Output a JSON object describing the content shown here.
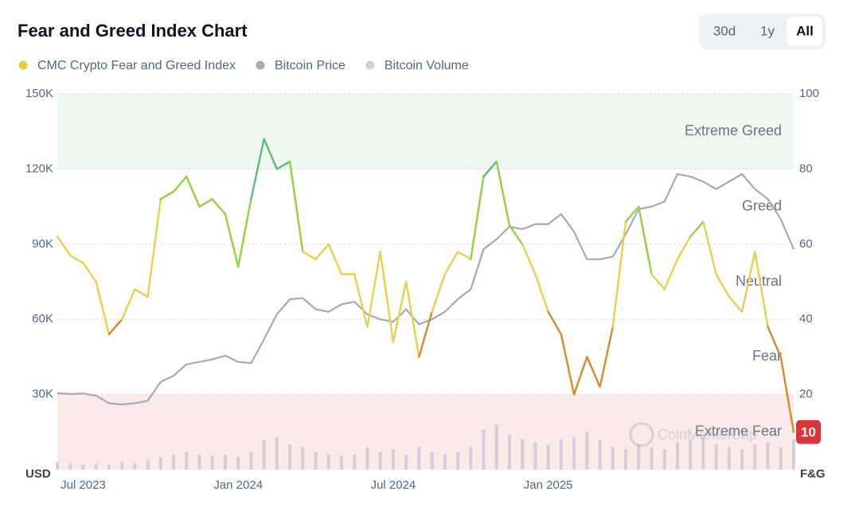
{
  "chart_data": {
    "type": "line",
    "title": "Fear and Greed Index Chart",
    "range_buttons": [
      "30d",
      "1y",
      "All"
    ],
    "categories": [
      null,
      null,
      "Jul 2023",
      null,
      null,
      null,
      null,
      null,
      null,
      null,
      null,
      null,
      null,
      null,
      "Jan 2024",
      null,
      null,
      null,
      null,
      null,
      null,
      null,
      null,
      null,
      null,
      null,
      "Jul 2024",
      null,
      null,
      null,
      null,
      null,
      null,
      null,
      null,
      null,
      null,
      null,
      "Jan 2025",
      null,
      null,
      null,
      null,
      null,
      null,
      null,
      null,
      null,
      null,
      null,
      null,
      null,
      null,
      null,
      null,
      null,
      null,
      null
    ],
    "series": [
      {
        "name": "CMC Crypto Fear and Greed Index",
        "color": "#e2cf3a",
        "axis": "y2",
        "values": [
          62,
          57,
          55,
          50,
          36,
          40,
          48,
          46,
          72,
          74,
          78,
          70,
          72,
          68,
          54,
          72,
          88,
          80,
          82,
          58,
          56,
          60,
          52,
          52,
          38,
          58,
          34,
          50,
          30,
          42,
          52,
          58,
          56,
          78,
          82,
          65,
          60,
          52,
          42,
          36,
          20,
          30,
          22,
          38,
          66,
          70,
          52,
          48,
          56,
          62,
          66,
          52,
          46,
          42,
          58,
          38,
          30,
          10
        ]
      },
      {
        "name": "Bitcoin Price",
        "color": "#a5a9b8",
        "values": [
          30500,
          30200,
          30400,
          29500,
          26500,
          26000,
          26500,
          27500,
          35000,
          37500,
          42000,
          43000,
          44000,
          45500,
          43000,
          42500,
          52000,
          62000,
          68000,
          68500,
          64000,
          63000,
          66000,
          67000,
          62000,
          60000,
          59000,
          64000,
          58000,
          60000,
          63000,
          68000,
          72000,
          88000,
          92000,
          97000,
          96000,
          98000,
          98000,
          102000,
          95000,
          84000,
          84000,
          85000,
          94000,
          104000,
          105000,
          107000,
          118000,
          117000,
          115000,
          112000,
          115000,
          118000,
          112000,
          108000,
          100000,
          88000
        ]
      },
      {
        "name": "Bitcoin Volume",
        "color": "#d6cdd9",
        "values": [
          3000,
          2500,
          2000,
          2500,
          2000,
          3000,
          2500,
          4000,
          5000,
          6000,
          7000,
          6000,
          5500,
          6000,
          5000,
          7000,
          12000,
          13000,
          10000,
          9000,
          7000,
          6000,
          5500,
          6000,
          9000,
          7000,
          8000,
          6000,
          9000,
          7000,
          6000,
          7000,
          9000,
          16000,
          18000,
          14000,
          12000,
          11000,
          10000,
          12000,
          13000,
          15000,
          12000,
          9000,
          8000,
          10000,
          9000,
          8000,
          11000,
          12000,
          14000,
          10000,
          9000,
          8000,
          10000,
          11000,
          9000,
          12000
        ]
      }
    ],
    "zones": [
      {
        "label": "Extreme Greed",
        "from": 80,
        "to": 100,
        "color": "#5fb97f",
        "background": "#eef8f1"
      },
      {
        "label": "Greed",
        "from": 60,
        "to": 80,
        "color": "#93d044"
      },
      {
        "label": "Neutral",
        "from": 40,
        "to": 60,
        "color": "#e6d04e"
      },
      {
        "label": "Fear",
        "from": 20,
        "to": 40,
        "color": "#d78a2a"
      },
      {
        "label": "Extreme Fear",
        "from": 0,
        "to": 20,
        "color": "#d9343a",
        "background": "#fbeaea"
      }
    ],
    "ylim": [
      0,
      150000
    ],
    "yticks": [
      {
        "value": 30000,
        "label": "30K"
      },
      {
        "value": 60000,
        "label": "60K"
      },
      {
        "value": 90000,
        "label": "90K"
      },
      {
        "value": 120000,
        "label": "120K"
      },
      {
        "value": 150000,
        "label": "150K"
      }
    ],
    "y_unit_label": "USD",
    "y2lim": [
      0,
      100
    ],
    "y2ticks": [
      20,
      40,
      60,
      80,
      100
    ],
    "y2_unit_label": "F&G",
    "grid": true,
    "watermark": "CoinMarketCap"
  }
}
